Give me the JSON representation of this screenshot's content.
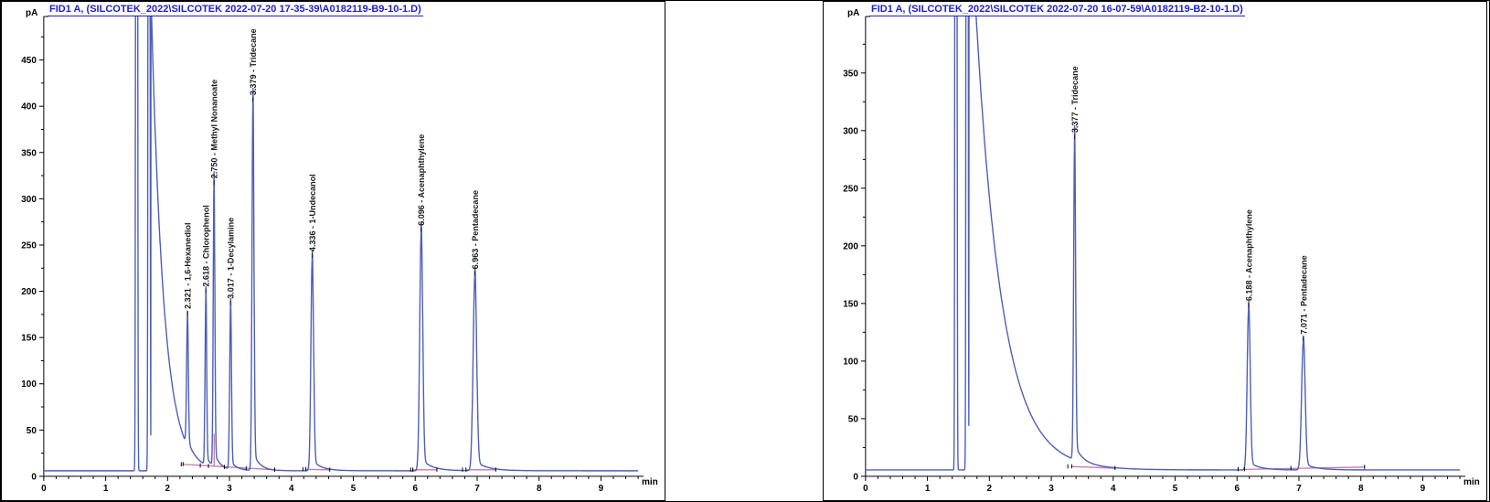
{
  "colors": {
    "trace": "#4d5fb8",
    "integration": "#c878ae",
    "title": "#2020c8",
    "axis": "#000000"
  },
  "peak_label_separator": " -  ",
  "chart_data": [
    {
      "type": "line",
      "title": "FID1 A,  (SILCOTEK_2022\\SILCOTEK 2022-07-20 17-35-39\\A0182119-B9-10-1.D)",
      "y_unit": "pA",
      "x_unit": "min",
      "xlim": [
        0,
        9.6
      ],
      "ylim": [
        0,
        497
      ],
      "x_ticks": [
        0,
        1,
        2,
        3,
        4,
        5,
        6,
        7,
        8,
        9
      ],
      "y_ticks": [
        0,
        50,
        100,
        150,
        200,
        250,
        300,
        350,
        400,
        450
      ],
      "grid": false,
      "baseline_pA": 6,
      "solvent_front": {
        "spike_times_min": [
          1.5,
          1.7
        ],
        "tail_start_min": 1.73,
        "tail_amp_pA": 520,
        "tail_tau_min": 0.2
      },
      "peaks": [
        {
          "rt_min": 2.321,
          "name": "1,6-Hexanediol",
          "apex_pA": 172,
          "sigma_min": 0.02
        },
        {
          "rt_min": 2.618,
          "name": "Chlorophenol",
          "apex_pA": 196,
          "sigma_min": 0.018
        },
        {
          "rt_min": 2.75,
          "name": "Methyl Nonanoate",
          "apex_pA": 313,
          "sigma_min": 0.018
        },
        {
          "rt_min": 3.017,
          "name": "1-Decylamine",
          "apex_pA": 183,
          "sigma_min": 0.02
        },
        {
          "rt_min": 3.379,
          "name": "Tridecane",
          "apex_pA": 403,
          "sigma_min": 0.022
        },
        {
          "rt_min": 4.336,
          "name": "1-Undecanol",
          "apex_pA": 234,
          "sigma_min": 0.03
        },
        {
          "rt_min": 6.096,
          "name": "Acenaphthylene",
          "apex_pA": 262,
          "sigma_min": 0.034
        },
        {
          "rt_min": 6.963,
          "name": "Pentadecane",
          "apex_pA": 215,
          "sigma_min": 0.04
        }
      ],
      "integration_baseline_segments": [
        [
          2.25,
          13.0,
          3.73,
          7.0
        ],
        [
          4.23,
          7.5,
          4.62,
          7.0
        ],
        [
          5.96,
          7.0,
          6.35,
          7.0
        ],
        [
          6.82,
          7.0,
          7.3,
          7.0
        ]
      ],
      "integration_droplines": [
        [
          2.752,
          11.0,
          46.0
        ]
      ]
    },
    {
      "type": "line",
      "title": "FID1 A,  (SILCOTEK_2022\\SILCOTEK 2022-07-20 16-07-59\\A0182119-B2-10-1.D)",
      "y_unit": "pA",
      "x_unit": "min",
      "xlim": [
        0,
        9.6
      ],
      "ylim": [
        0,
        399
      ],
      "x_ticks": [
        0,
        1,
        2,
        3,
        4,
        5,
        6,
        7,
        8,
        9
      ],
      "y_ticks": [
        0,
        50,
        100,
        150,
        200,
        250,
        300,
        350
      ],
      "grid": false,
      "baseline_pA": 5.5,
      "solvent_front": {
        "spike_times_min": [
          1.46,
          1.64
        ],
        "tail_start_min": 1.67,
        "tail_amp_pA": 520,
        "tail_tau_min": 0.42
      },
      "peaks": [
        {
          "rt_min": 3.377,
          "name": "Tridecane",
          "apex_pA": 291,
          "sigma_min": 0.022
        },
        {
          "rt_min": 6.188,
          "name": "Acenaphthylene",
          "apex_pA": 145,
          "sigma_min": 0.034
        },
        {
          "rt_min": 7.071,
          "name": "Pentadecane",
          "apex_pA": 116,
          "sigma_min": 0.04
        }
      ],
      "integration_baseline_segments": [
        [
          3.33,
          8.5,
          4.03,
          7.0
        ],
        [
          6.12,
          6.0,
          8.06,
          8.0
        ]
      ],
      "integration_droplines": []
    }
  ]
}
